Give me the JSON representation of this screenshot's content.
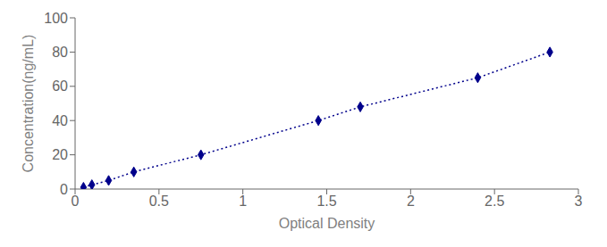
{
  "chart_data": {
    "type": "line",
    "x": [
      0.05,
      0.1,
      0.2,
      0.35,
      0.75,
      1.45,
      1.7,
      2.4,
      2.83
    ],
    "values": [
      1,
      2.5,
      5,
      10,
      20,
      40,
      48,
      65,
      80
    ],
    "color": "#00008B",
    "marker": "diamond",
    "line_style": "dotted",
    "xlabel": "Optical Density",
    "ylabel": "Concentration(ng/mL)",
    "xlim": [
      0,
      3.0
    ],
    "ylim": [
      0,
      100
    ],
    "xticks": [
      0,
      0.5,
      1,
      1.5,
      2,
      2.5,
      3
    ],
    "yticks": [
      0,
      20,
      40,
      60,
      80,
      100
    ],
    "grid": false
  }
}
